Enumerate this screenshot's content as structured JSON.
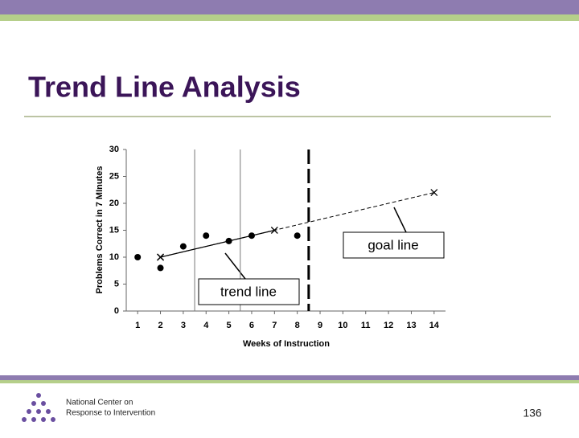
{
  "slide": {
    "title": "Trend Line Analysis",
    "footer_org": [
      "National Center on",
      "Response to Intervention"
    ],
    "page_number": "136"
  },
  "chart_data": {
    "type": "scatter",
    "xlabel": "Weeks of Instruction",
    "ylabel": "Problems Correct in 7 MInutes",
    "xlim": [
      0.5,
      14.5
    ],
    "xticks": [
      1,
      2,
      3,
      4,
      5,
      6,
      7,
      8,
      9,
      10,
      11,
      12,
      13,
      14
    ],
    "ylim": [
      0,
      30
    ],
    "yticks": [
      0,
      5,
      10,
      15,
      20,
      25,
      30
    ],
    "series": [
      {
        "x": [
          1,
          2,
          3,
          4,
          5,
          6,
          8
        ],
        "values": [
          10,
          8,
          12,
          14,
          13,
          14,
          14
        ],
        "marker": "dot",
        "color": "#000000"
      },
      {
        "name": "trend line",
        "x": [
          2,
          7
        ],
        "values": [
          10,
          15
        ],
        "marker": "x",
        "line": "solid",
        "color": "#000000"
      },
      {
        "name": "goal line",
        "x": [
          2,
          14
        ],
        "values": [
          10,
          22
        ],
        "marker": "x",
        "line": "dashed",
        "color": "#000000"
      }
    ],
    "phase_lines": [
      {
        "value": 3.5,
        "style": "solid"
      },
      {
        "value": 5.5,
        "style": "solid"
      },
      {
        "value": 8.5,
        "style": "dashed"
      }
    ]
  }
}
